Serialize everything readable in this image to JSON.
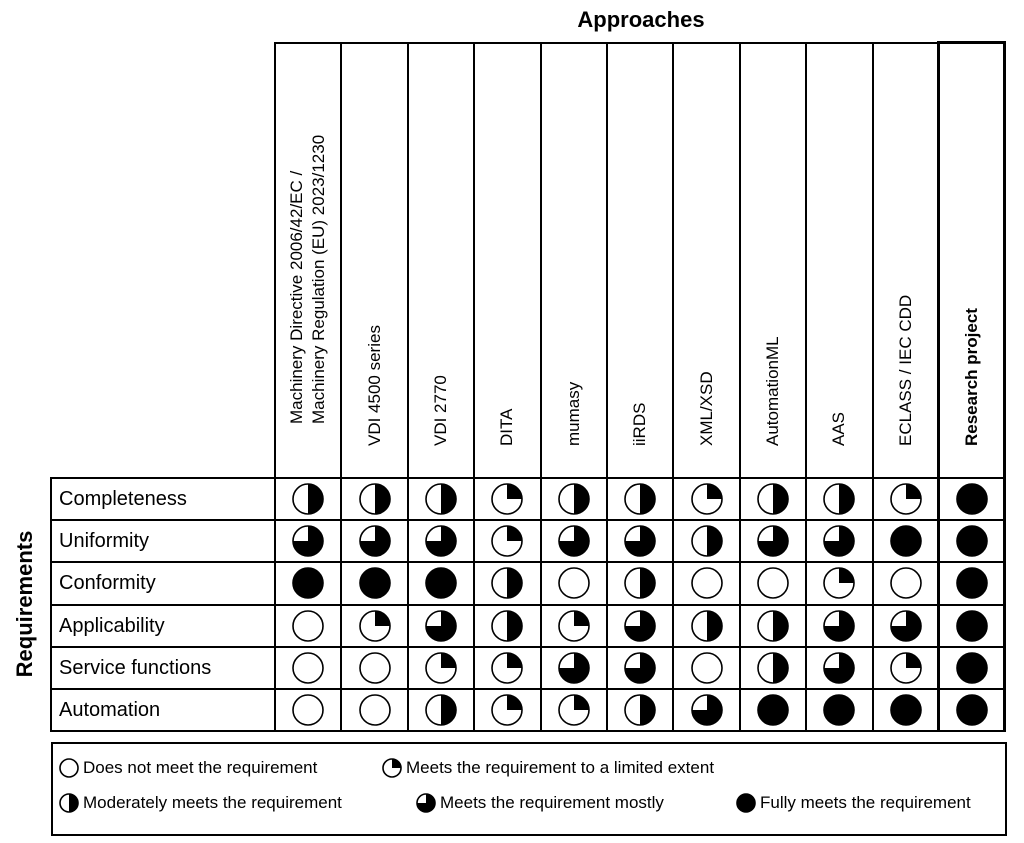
{
  "titles": {
    "top": "Approaches",
    "left": "Requirements"
  },
  "columns": [
    {
      "label": "Machinery Directive 2006/42/EC /",
      "label2": "Machinery Regulation (EU) 2023/1230",
      "bold": false
    },
    {
      "label": "VDI 4500 series",
      "label2": "",
      "bold": false
    },
    {
      "label": "VDI 2770",
      "label2": "",
      "bold": false
    },
    {
      "label": "DITA",
      "label2": "",
      "bold": false
    },
    {
      "label": "mumasy",
      "label2": "",
      "bold": false
    },
    {
      "label": "iiRDS",
      "label2": "",
      "bold": false
    },
    {
      "label": "XML/XSD",
      "label2": "",
      "bold": false
    },
    {
      "label": "AutomationML",
      "label2": "",
      "bold": false
    },
    {
      "label": "AAS",
      "label2": "",
      "bold": false
    },
    {
      "label": "ECLASS / IEC CDD",
      "label2": "",
      "bold": false
    },
    {
      "label": "Research project",
      "label2": "",
      "bold": true
    }
  ],
  "rows": [
    {
      "label": "Completeness",
      "ratings": [
        0.5,
        0.5,
        0.5,
        0.25,
        0.5,
        0.5,
        0.25,
        0.5,
        0.5,
        0.25,
        1
      ]
    },
    {
      "label": "Uniformity",
      "ratings": [
        0.75,
        0.75,
        0.75,
        0.25,
        0.75,
        0.75,
        0.5,
        0.75,
        0.75,
        1,
        1
      ]
    },
    {
      "label": "Conformity",
      "ratings": [
        1,
        1,
        1,
        0.5,
        0,
        0.5,
        0,
        0,
        0.25,
        0,
        1
      ]
    },
    {
      "label": "Applicability",
      "ratings": [
        0,
        0.25,
        0.75,
        0.5,
        0.25,
        0.75,
        0.5,
        0.5,
        0.75,
        0.75,
        1
      ]
    },
    {
      "label": "Service functions",
      "ratings": [
        0,
        0,
        0.25,
        0.25,
        0.75,
        0.75,
        0,
        0.5,
        0.75,
        0.25,
        1
      ]
    },
    {
      "label": "Automation",
      "ratings": [
        0,
        0,
        0.5,
        0.25,
        0.25,
        0.5,
        0.75,
        1,
        1,
        1,
        1
      ]
    }
  ],
  "legend": [
    {
      "level": 0,
      "text": "Does not meet the requirement"
    },
    {
      "level": 0.25,
      "text": "Meets the requirement to a limited extent"
    },
    {
      "level": 0.5,
      "text": "Moderately meets the requirement"
    },
    {
      "level": 0.75,
      "text": "Meets the requirement mostly"
    },
    {
      "level": 1,
      "text": "Fully meets the requirement"
    }
  ]
}
